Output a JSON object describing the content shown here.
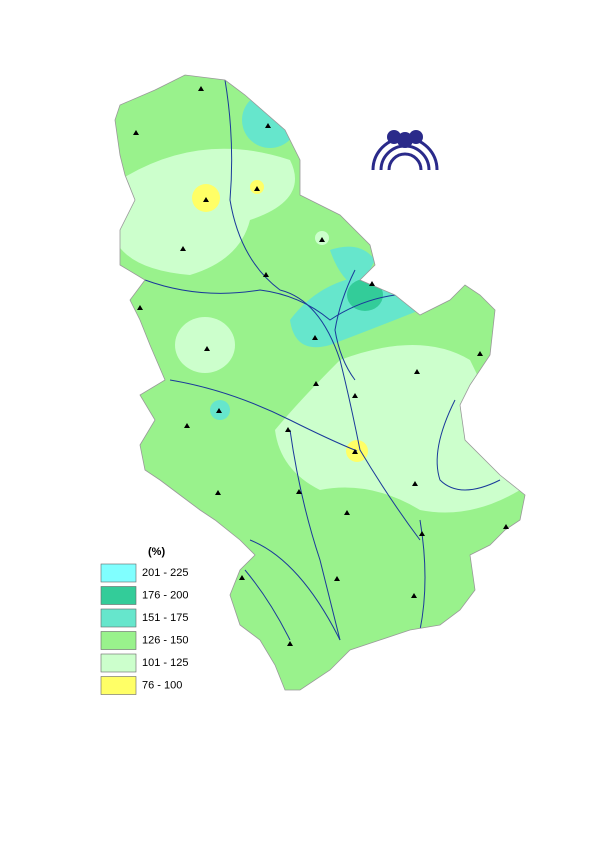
{
  "legend": {
    "title": "(%)",
    "items": [
      {
        "label": "201 - 225",
        "color": "#80ffff"
      },
      {
        "label": "176 - 200",
        "color": "#33cc99"
      },
      {
        "label": "151 - 175",
        "color": "#66e6cc"
      },
      {
        "label": "126 - 150",
        "color": "#99f28c"
      },
      {
        "label": "101 - 125",
        "color": "#ccffcc"
      },
      {
        "label": "76 - 100",
        "color": "#ffff66"
      }
    ]
  }
}
